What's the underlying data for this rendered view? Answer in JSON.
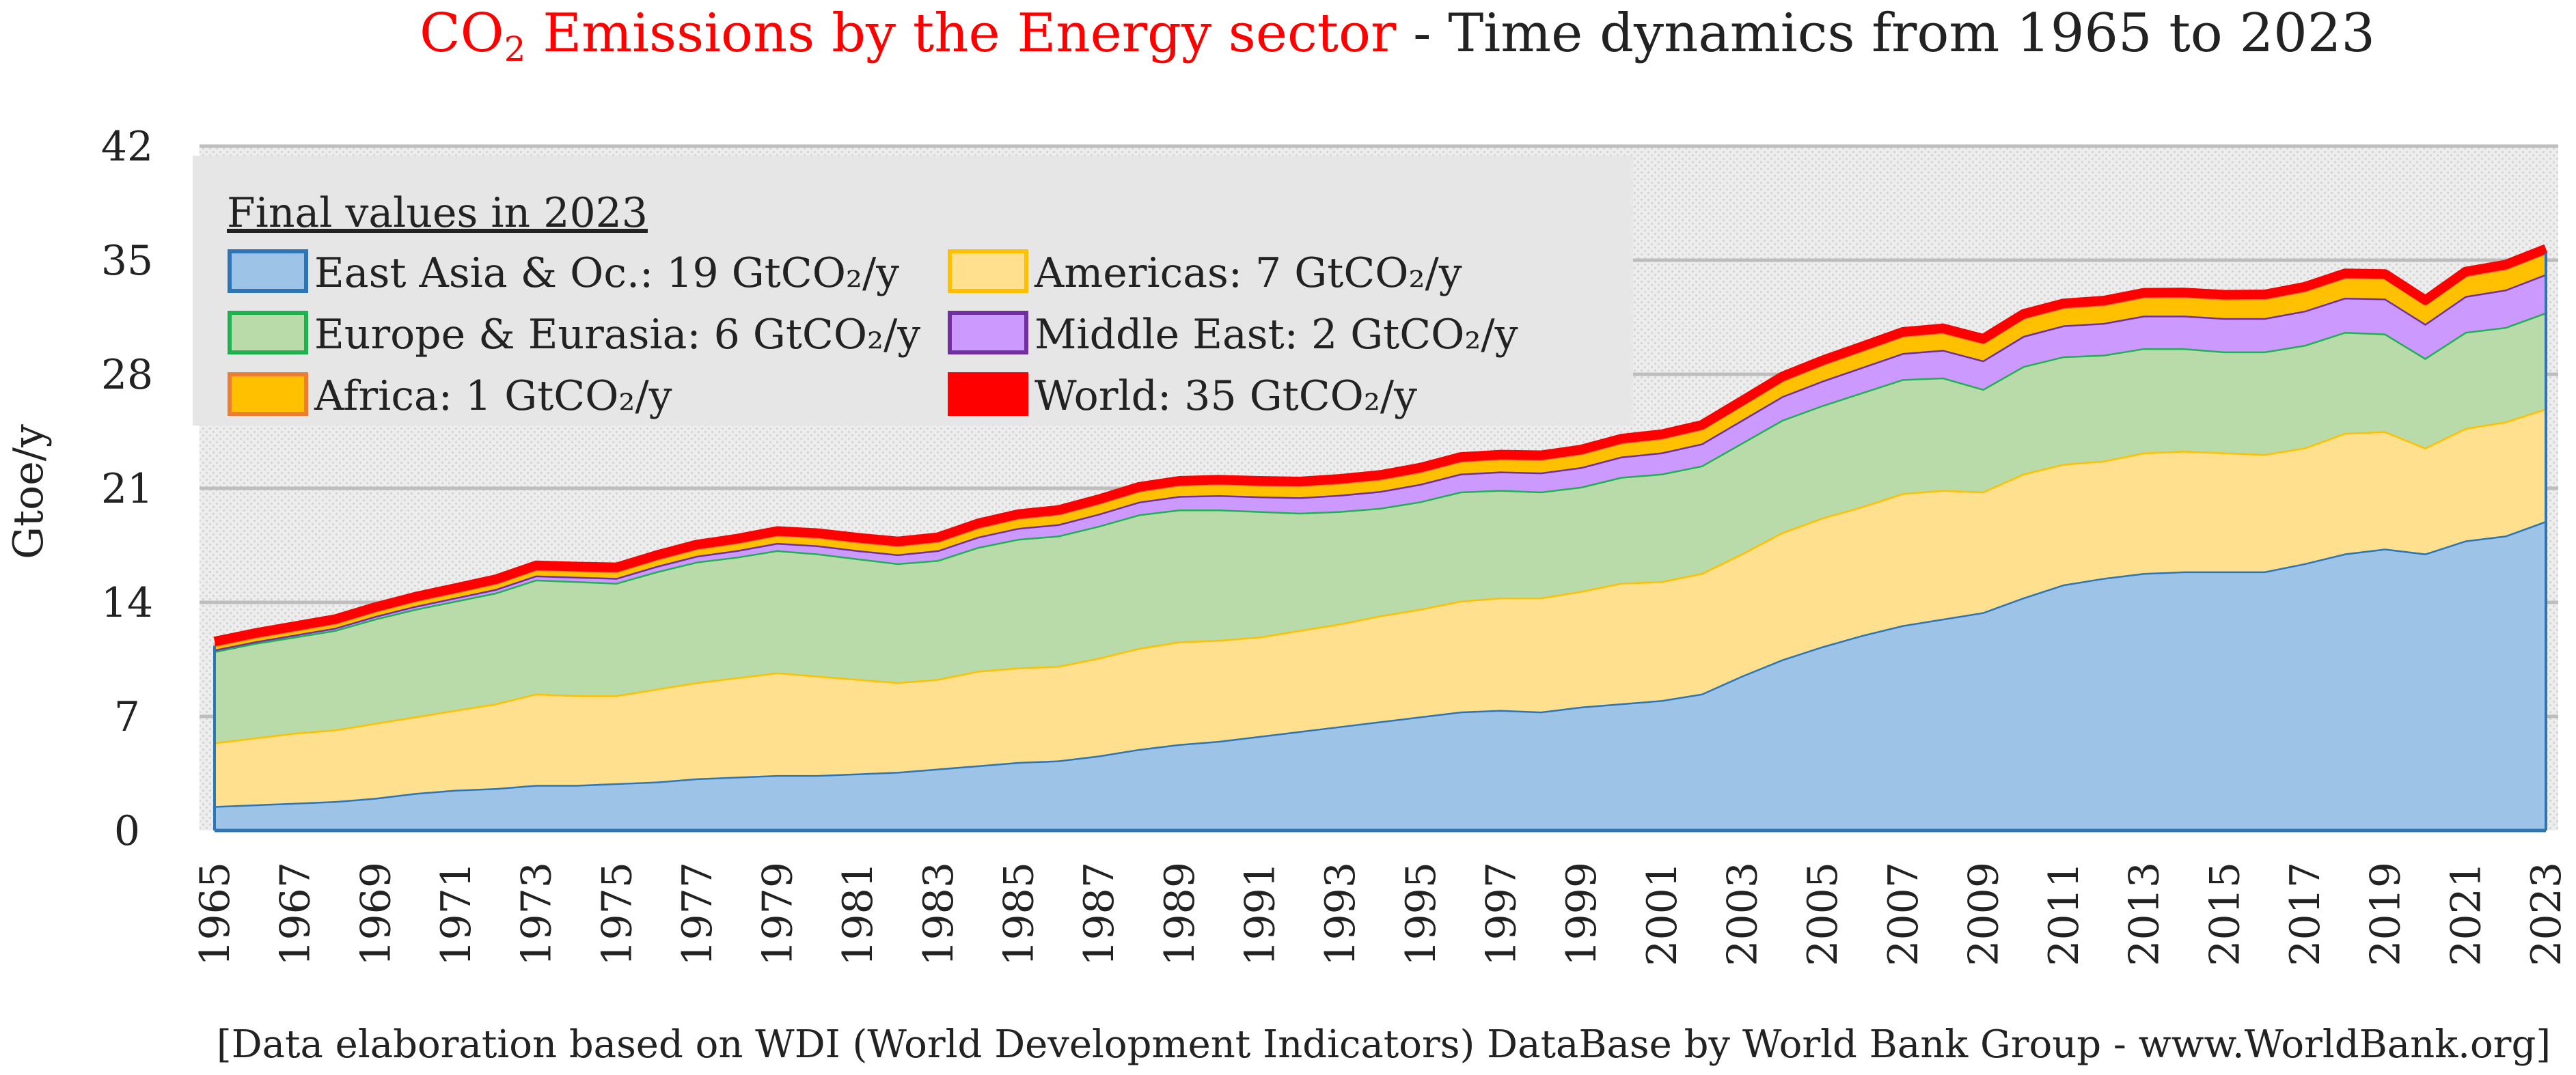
{
  "chart_data": {
    "type": "area",
    "stacked": true,
    "title": {
      "red_prefix": "CO",
      "red_subscript": "2",
      "red_rest": " Emissions by the Energy sector",
      "black_rest": " - Time dynamics from 1965 to 2023"
    },
    "ylabel": "Gtoe/y",
    "xlabel": "",
    "ylim": [
      0,
      42
    ],
    "yticks": [
      "0",
      "7",
      "14",
      "21",
      "28",
      "35",
      "42"
    ],
    "ytick_values": [
      0,
      7,
      14,
      21,
      28,
      35,
      42
    ],
    "x": [
      1965,
      1966,
      1967,
      1968,
      1969,
      1970,
      1971,
      1972,
      1973,
      1974,
      1975,
      1976,
      1977,
      1978,
      1979,
      1980,
      1981,
      1982,
      1983,
      1984,
      1985,
      1986,
      1987,
      1988,
      1989,
      1990,
      1991,
      1992,
      1993,
      1994,
      1995,
      1996,
      1997,
      1998,
      1999,
      2000,
      2001,
      2002,
      2003,
      2004,
      2005,
      2006,
      2007,
      2008,
      2009,
      2010,
      2011,
      2012,
      2013,
      2014,
      2015,
      2016,
      2017,
      2018,
      2019,
      2020,
      2021,
      2022,
      2023
    ],
    "xtick_labels": [
      "1965",
      "1967",
      "1969",
      "1971",
      "1973",
      "1975",
      "1977",
      "1979",
      "1981",
      "1983",
      "1985",
      "1987",
      "1989",
      "1991",
      "1993",
      "1995",
      "1997",
      "1999",
      "2001",
      "2003",
      "2005",
      "2007",
      "2009",
      "2011",
      "2013",
      "2015",
      "2017",
      "2019",
      "2021",
      "2023"
    ],
    "grid": true,
    "legend_title": "Final values in 2023",
    "legend_placement": "top-left",
    "series": [
      {
        "name": "East Asia & Oc.",
        "legend": "East Asia & Oc.: 19 GtCO₂/y",
        "fill": "#9DC3E6",
        "stroke": "#2E75B6",
        "values": [
          1.5,
          1.6,
          1.7,
          1.8,
          2.0,
          2.3,
          2.5,
          2.6,
          2.8,
          2.8,
          2.9,
          3.0,
          3.2,
          3.3,
          3.4,
          3.4,
          3.5,
          3.6,
          3.8,
          4.0,
          4.2,
          4.3,
          4.6,
          5.0,
          5.3,
          5.5,
          5.8,
          6.1,
          6.4,
          6.7,
          7.0,
          7.3,
          7.4,
          7.3,
          7.6,
          7.8,
          8.0,
          8.4,
          9.5,
          10.5,
          11.3,
          12.0,
          12.6,
          13.0,
          13.4,
          14.3,
          15.1,
          15.5,
          15.8,
          15.9,
          15.9,
          15.9,
          16.4,
          17.0,
          17.3,
          17.0,
          17.8,
          18.1,
          19.0
        ]
      },
      {
        "name": "Americas",
        "legend": "Americas: 7 GtCO₂/y",
        "fill": "#FFE08F",
        "stroke": "#FFC000",
        "values": [
          3.9,
          4.1,
          4.3,
          4.4,
          4.6,
          4.7,
          4.9,
          5.2,
          5.6,
          5.5,
          5.4,
          5.7,
          5.9,
          6.1,
          6.3,
          6.1,
          5.8,
          5.5,
          5.5,
          5.8,
          5.8,
          5.8,
          6.0,
          6.2,
          6.3,
          6.2,
          6.1,
          6.2,
          6.3,
          6.5,
          6.6,
          6.8,
          6.9,
          7.0,
          7.1,
          7.4,
          7.3,
          7.4,
          7.5,
          7.8,
          7.9,
          7.9,
          8.1,
          7.9,
          7.4,
          7.6,
          7.4,
          7.2,
          7.4,
          7.4,
          7.3,
          7.2,
          7.1,
          7.4,
          7.2,
          6.5,
          6.9,
          7.0,
          6.9
        ]
      },
      {
        "name": "Europe & Eurasia",
        "legend": "Europe & Eurasia: 6 GtCO₂/y",
        "fill": "#B9DBA9",
        "stroke": "#1FB050",
        "values": [
          5.6,
          5.8,
          5.9,
          6.1,
          6.4,
          6.6,
          6.7,
          6.8,
          7.0,
          7.0,
          6.9,
          7.2,
          7.4,
          7.4,
          7.5,
          7.5,
          7.4,
          7.3,
          7.3,
          7.6,
          7.9,
          8.0,
          8.1,
          8.2,
          8.1,
          8.0,
          7.7,
          7.2,
          6.9,
          6.6,
          6.6,
          6.7,
          6.6,
          6.5,
          6.4,
          6.5,
          6.6,
          6.6,
          6.8,
          6.9,
          6.9,
          7.0,
          7.0,
          6.9,
          6.3,
          6.6,
          6.6,
          6.5,
          6.4,
          6.3,
          6.2,
          6.3,
          6.3,
          6.2,
          6.0,
          5.5,
          5.9,
          5.8,
          5.9
        ]
      },
      {
        "name": "Middle East",
        "legend": "Middle East: 2 GtCO₂/y",
        "fill": "#CC99FF",
        "stroke": "#7030A0",
        "values": [
          0.1,
          0.1,
          0.12,
          0.14,
          0.16,
          0.18,
          0.2,
          0.22,
          0.25,
          0.27,
          0.3,
          0.33,
          0.36,
          0.4,
          0.45,
          0.5,
          0.5,
          0.55,
          0.6,
          0.63,
          0.67,
          0.7,
          0.74,
          0.78,
          0.83,
          0.88,
          0.9,
          0.95,
          1.0,
          1.03,
          1.07,
          1.1,
          1.13,
          1.17,
          1.2,
          1.25,
          1.3,
          1.35,
          1.4,
          1.45,
          1.5,
          1.55,
          1.6,
          1.7,
          1.75,
          1.85,
          1.9,
          1.95,
          2.0,
          2.0,
          2.05,
          2.05,
          2.1,
          2.1,
          2.15,
          2.1,
          2.2,
          2.3,
          2.35
        ]
      },
      {
        "name": "Africa",
        "legend": "Africa: 1 GtCO₂/y",
        "fill": "#FFC000",
        "stroke": "#ED7D31",
        "values": [
          0.25,
          0.26,
          0.27,
          0.28,
          0.3,
          0.32,
          0.33,
          0.35,
          0.37,
          0.38,
          0.4,
          0.42,
          0.44,
          0.46,
          0.48,
          0.5,
          0.52,
          0.54,
          0.55,
          0.57,
          0.6,
          0.62,
          0.64,
          0.66,
          0.68,
          0.7,
          0.71,
          0.72,
          0.73,
          0.74,
          0.75,
          0.77,
          0.79,
          0.81,
          0.83,
          0.85,
          0.87,
          0.89,
          0.92,
          0.96,
          1.0,
          1.02,
          1.05,
          1.07,
          1.08,
          1.1,
          1.1,
          1.12,
          1.15,
          1.17,
          1.18,
          1.2,
          1.22,
          1.24,
          1.25,
          1.2,
          1.25,
          1.28,
          1.3
        ]
      },
      {
        "name": "World",
        "legend": "World: 35 GtCO₂/y",
        "fill": "#FF0000",
        "stroke": "#FF0000",
        "values": null
      }
    ],
    "footnote": "[Data elaboration based on WDI (World Development Indicators) DataBase by World Bank Group - www.WorldBank.org]"
  }
}
